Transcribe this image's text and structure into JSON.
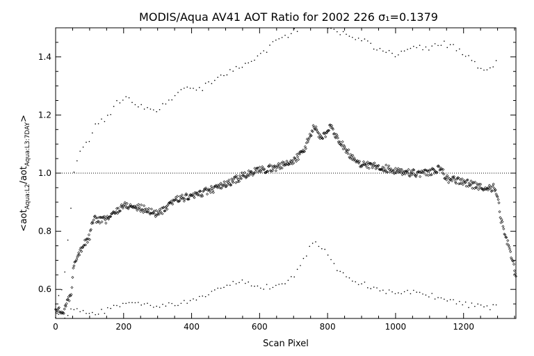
{
  "chart_data": {
    "type": "scatter",
    "title": "MODIS/Aqua AV41 AOT Ratio for 2002 226 σ₁=0.1379",
    "xlabel": "Scan Pixel",
    "ylabel_main": "<aot",
    "ylabel_sub1": "Aqua:L2",
    "ylabel_mid": "/aot",
    "ylabel_sub2": "Aqua:L3:7DAY",
    "ylabel_end": ">",
    "xlim": [
      0,
      1354
    ],
    "ylim": [
      0.5,
      1.5
    ],
    "x_ticks": [
      0,
      200,
      400,
      600,
      800,
      1000,
      1200
    ],
    "y_ticks": [
      0.6,
      0.8,
      1.0,
      1.2,
      1.4
    ],
    "reference_line_y": 1.0,
    "grid": false,
    "mean_curve": [
      [
        0,
        0.53
      ],
      [
        20,
        0.52
      ],
      [
        45,
        0.58
      ],
      [
        55,
        0.7
      ],
      [
        80,
        0.75
      ],
      [
        100,
        0.78
      ],
      [
        110,
        0.84
      ],
      [
        150,
        0.84
      ],
      [
        200,
        0.89
      ],
      [
        250,
        0.88
      ],
      [
        300,
        0.86
      ],
      [
        330,
        0.88
      ],
      [
        350,
        0.91
      ],
      [
        400,
        0.92
      ],
      [
        450,
        0.94
      ],
      [
        500,
        0.96
      ],
      [
        550,
        0.99
      ],
      [
        600,
        1.01
      ],
      [
        650,
        1.02
      ],
      [
        700,
        1.04
      ],
      [
        730,
        1.08
      ],
      [
        760,
        1.16
      ],
      [
        770,
        1.14
      ],
      [
        785,
        1.12
      ],
      [
        810,
        1.16
      ],
      [
        830,
        1.12
      ],
      [
        860,
        1.07
      ],
      [
        900,
        1.03
      ],
      [
        950,
        1.02
      ],
      [
        1000,
        1.01
      ],
      [
        1050,
        1.0
      ],
      [
        1100,
        1.0
      ],
      [
        1130,
        1.02
      ],
      [
        1150,
        0.98
      ],
      [
        1200,
        0.97
      ],
      [
        1250,
        0.95
      ],
      [
        1290,
        0.95
      ],
      [
        1300,
        0.92
      ],
      [
        1310,
        0.84
      ],
      [
        1320,
        0.8
      ],
      [
        1340,
        0.72
      ],
      [
        1354,
        0.64
      ]
    ],
    "upper_bound": [
      [
        0,
        0.56
      ],
      [
        20,
        0.6
      ],
      [
        40,
        0.8
      ],
      [
        55,
        1.02
      ],
      [
        70,
        1.08
      ],
      [
        100,
        1.11
      ],
      [
        120,
        1.17
      ],
      [
        150,
        1.19
      ],
      [
        180,
        1.24
      ],
      [
        200,
        1.26
      ],
      [
        230,
        1.24
      ],
      [
        260,
        1.23
      ],
      [
        300,
        1.22
      ],
      [
        330,
        1.24
      ],
      [
        360,
        1.28
      ],
      [
        400,
        1.29
      ],
      [
        430,
        1.29
      ],
      [
        450,
        1.31
      ],
      [
        500,
        1.34
      ],
      [
        550,
        1.37
      ],
      [
        600,
        1.4
      ],
      [
        650,
        1.46
      ],
      [
        680,
        1.47
      ],
      [
        700,
        1.49
      ],
      [
        760,
        1.52
      ],
      [
        800,
        1.5
      ],
      [
        850,
        1.48
      ],
      [
        900,
        1.46
      ],
      [
        940,
        1.43
      ],
      [
        980,
        1.42
      ],
      [
        1000,
        1.41
      ],
      [
        1030,
        1.42
      ],
      [
        1060,
        1.44
      ],
      [
        1100,
        1.42
      ],
      [
        1120,
        1.45
      ],
      [
        1160,
        1.44
      ],
      [
        1200,
        1.41
      ],
      [
        1230,
        1.38
      ],
      [
        1250,
        1.36
      ],
      [
        1280,
        1.36
      ],
      [
        1300,
        1.4
      ]
    ],
    "lower_bound": [
      [
        0,
        0.51
      ],
      [
        20,
        0.5
      ],
      [
        40,
        0.52
      ],
      [
        55,
        0.54
      ],
      [
        100,
        0.52
      ],
      [
        160,
        0.53
      ],
      [
        200,
        0.55
      ],
      [
        250,
        0.55
      ],
      [
        300,
        0.54
      ],
      [
        350,
        0.55
      ],
      [
        400,
        0.56
      ],
      [
        450,
        0.58
      ],
      [
        500,
        0.61
      ],
      [
        550,
        0.63
      ],
      [
        600,
        0.61
      ],
      [
        650,
        0.61
      ],
      [
        700,
        0.64
      ],
      [
        730,
        0.7
      ],
      [
        760,
        0.77
      ],
      [
        790,
        0.74
      ],
      [
        820,
        0.68
      ],
      [
        860,
        0.64
      ],
      [
        900,
        0.62
      ],
      [
        950,
        0.6
      ],
      [
        1000,
        0.59
      ],
      [
        1050,
        0.59
      ],
      [
        1100,
        0.58
      ],
      [
        1150,
        0.57
      ],
      [
        1200,
        0.55
      ],
      [
        1250,
        0.54
      ],
      [
        1280,
        0.54
      ],
      [
        1300,
        0.55
      ]
    ]
  }
}
